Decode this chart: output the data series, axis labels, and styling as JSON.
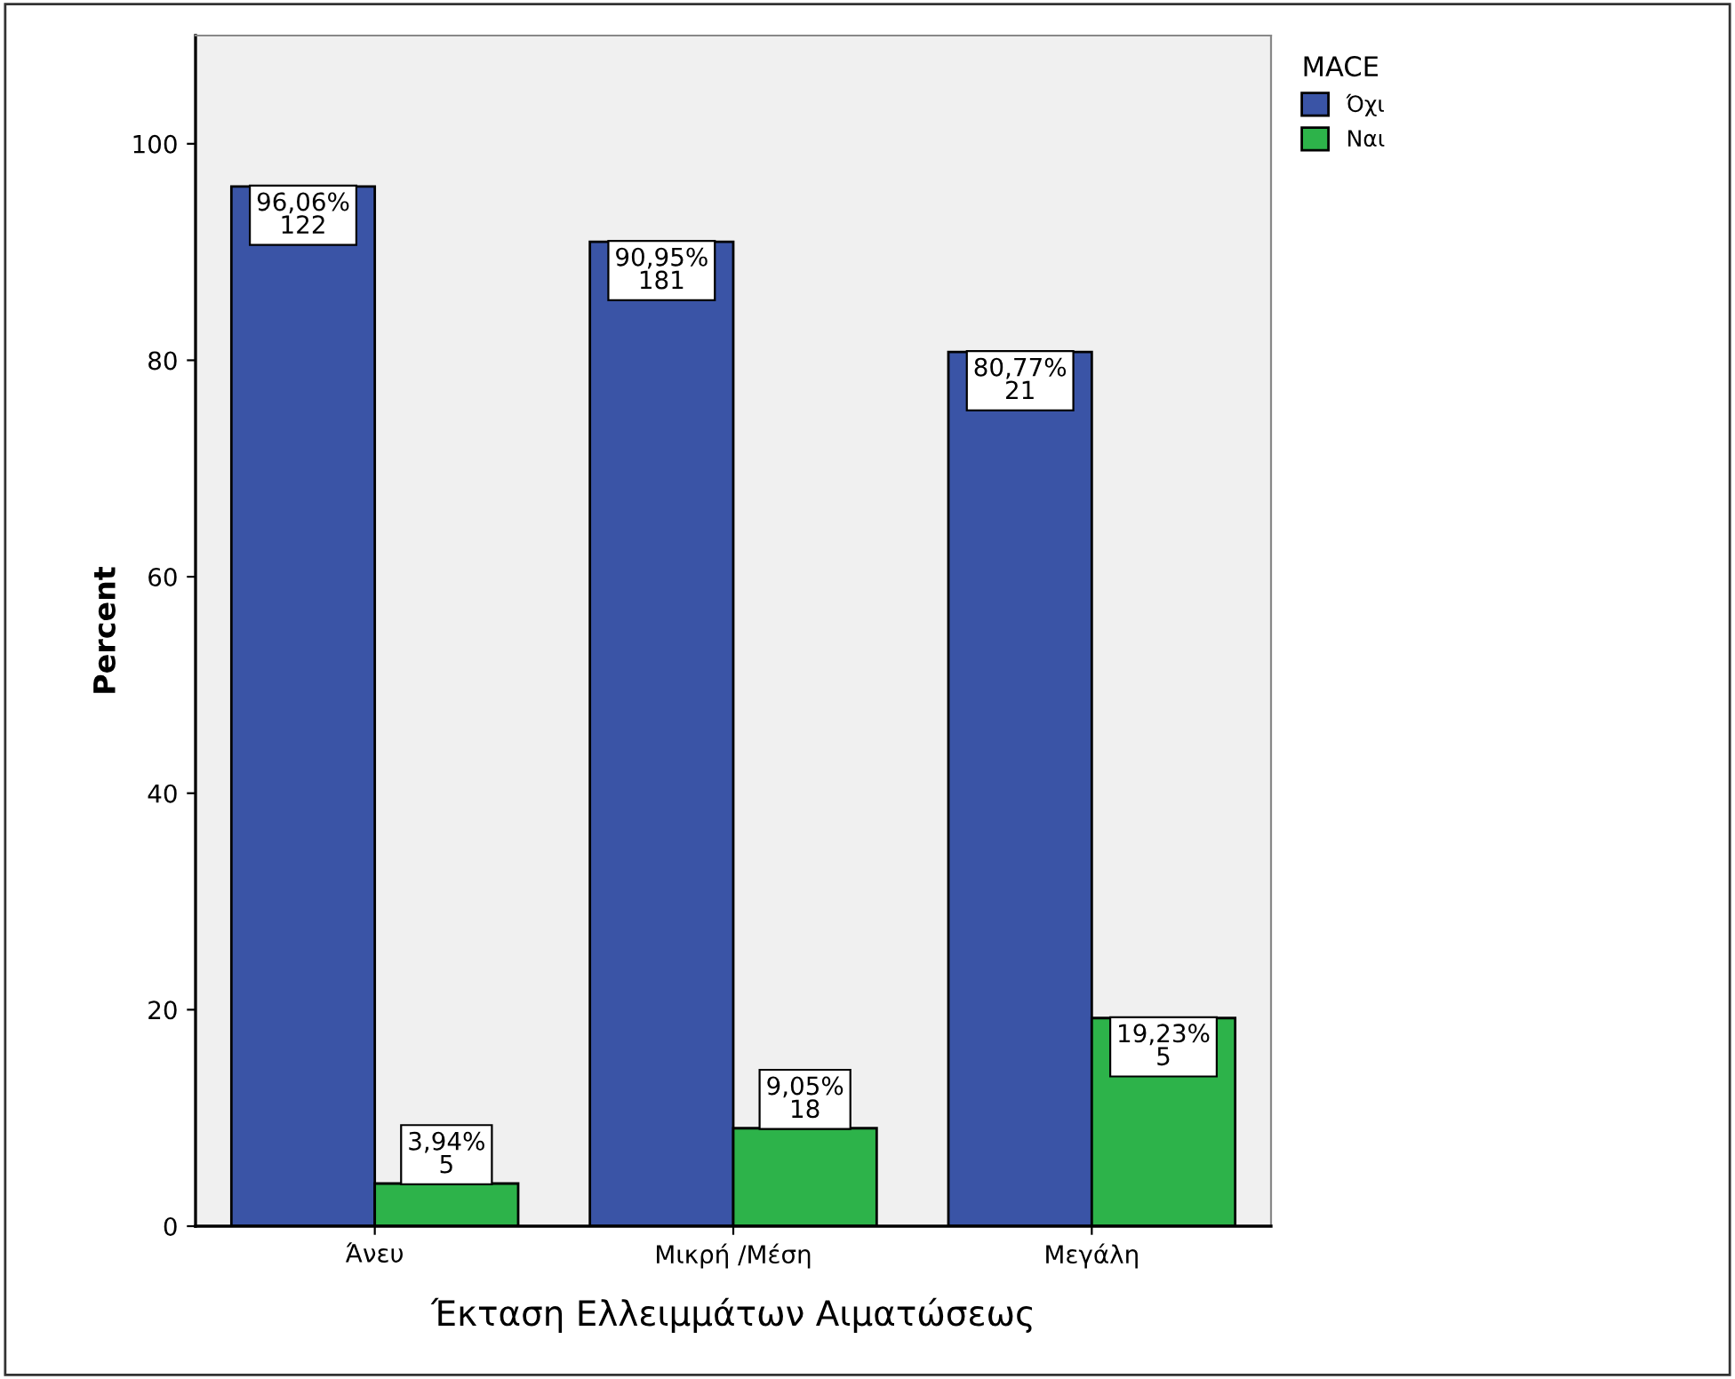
{
  "chart_data": {
    "type": "bar",
    "xlabel": "Έκταση Ελλειμμάτων Αιματώσεως",
    "ylabel": "Percent",
    "legend_title": "MACE",
    "categories": [
      "Άνευ",
      "Μικρή /Μέση",
      "Μεγάλη"
    ],
    "series": [
      {
        "name": "Όχι",
        "color": "#3a54a6",
        "values": [
          96.06,
          90.95,
          80.77
        ],
        "value_labels": [
          "96,06%\n122",
          "90,95%\n181",
          "80,77%\n21"
        ]
      },
      {
        "name": "Ναι",
        "color": "#2db34a",
        "values": [
          3.94,
          9.05,
          19.23
        ],
        "value_labels": [
          "3,94%\n5",
          "9,05%\n18",
          "19,23%\n5"
        ]
      }
    ],
    "ylim": [
      0,
      110
    ],
    "yticks": [
      0,
      20,
      40,
      60,
      80,
      100
    ],
    "grid": false,
    "legend": "right"
  }
}
